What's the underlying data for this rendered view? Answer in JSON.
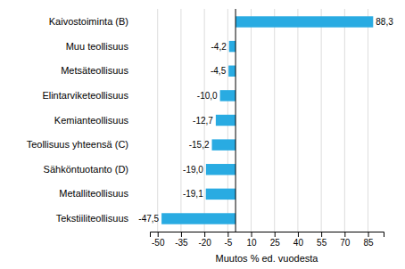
{
  "chart_data": {
    "type": "bar",
    "orientation": "horizontal",
    "categories": [
      "Tekstiiliteollisuus",
      "Metalliteollisuus",
      "Sähköntuotanto (D)",
      "Teollisuus yhteensä (C)",
      "Kemianteollisuus",
      "Elintarviketeollisuus",
      "Metsäteollisuus",
      "Muu teollisuus",
      "Kaivostoiminta (B)"
    ],
    "values": [
      -47.5,
      -19.1,
      -19.0,
      -15.2,
      -12.7,
      -10.0,
      -4.5,
      -4.2,
      88.3
    ],
    "value_labels": [
      "-47,5",
      "-19,1",
      "-19,0",
      "-15,2",
      "-12,7",
      "-10,0",
      "-4,5",
      "-4,2",
      "88,3"
    ],
    "data_labels": true,
    "color": "#29abe2",
    "xlabel": "Muutos % ed. vuodesta",
    "xlim": [
      -55,
      95
    ],
    "xticks": [
      -50,
      -35,
      -20,
      -5,
      10,
      25,
      40,
      55,
      70,
      85
    ],
    "grid": true
  }
}
